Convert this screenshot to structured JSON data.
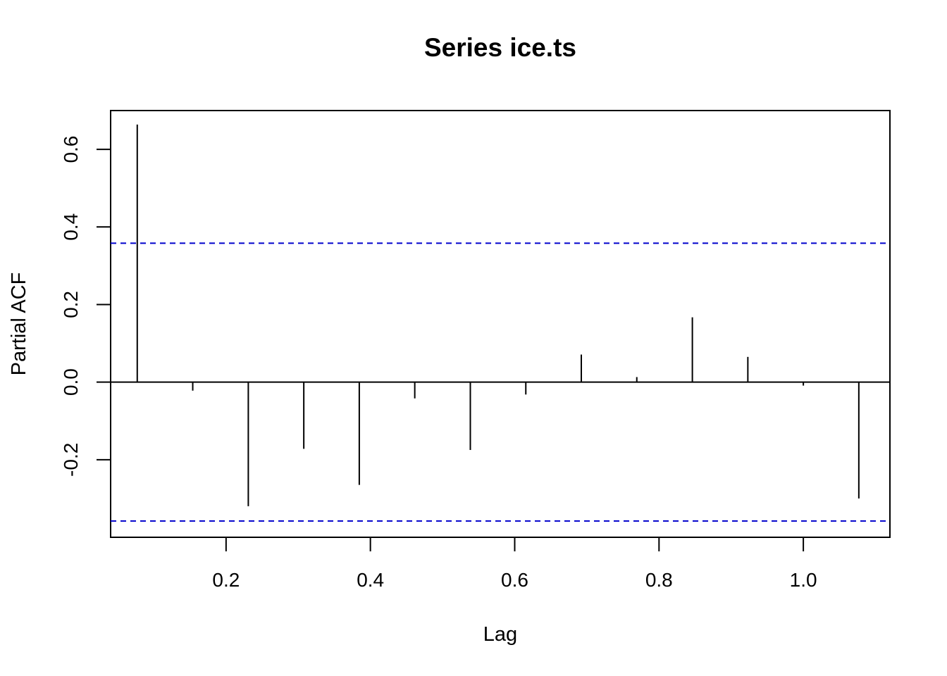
{
  "chart_data": {
    "type": "bar",
    "title": "Series  ice.ts",
    "xlabel": "Lag",
    "ylabel": "Partial ACF",
    "xlim": [
      0.04,
      1.12
    ],
    "ylim": [
      -0.4,
      0.7
    ],
    "x_ticks": [
      {
        "value": 0.2,
        "label": "0.2"
      },
      {
        "value": 0.4,
        "label": "0.4"
      },
      {
        "value": 0.6,
        "label": "0.6"
      },
      {
        "value": 0.8,
        "label": "0.8"
      },
      {
        "value": 1.0,
        "label": "1.0"
      }
    ],
    "y_ticks": [
      {
        "value": -0.2,
        "label": "-0.2"
      },
      {
        "value": 0.0,
        "label": "0.0"
      },
      {
        "value": 0.2,
        "label": "0.2"
      },
      {
        "value": 0.4,
        "label": "0.4"
      },
      {
        "value": 0.6,
        "label": "0.6"
      }
    ],
    "lags": [
      0.0769,
      0.1538,
      0.2308,
      0.3077,
      0.3846,
      0.4615,
      0.5385,
      0.6154,
      0.6923,
      0.7692,
      0.8462,
      0.9231,
      1.0,
      1.0769
    ],
    "values": [
      0.664,
      -0.022,
      -0.32,
      -0.172,
      -0.265,
      -0.042,
      -0.175,
      -0.032,
      0.071,
      0.013,
      0.167,
      0.065,
      -0.009,
      -0.3
    ],
    "confidence_limit": 0.358,
    "ci_color": "#0000cc",
    "spike_color": "#000000",
    "grid": false,
    "legend": "none"
  }
}
